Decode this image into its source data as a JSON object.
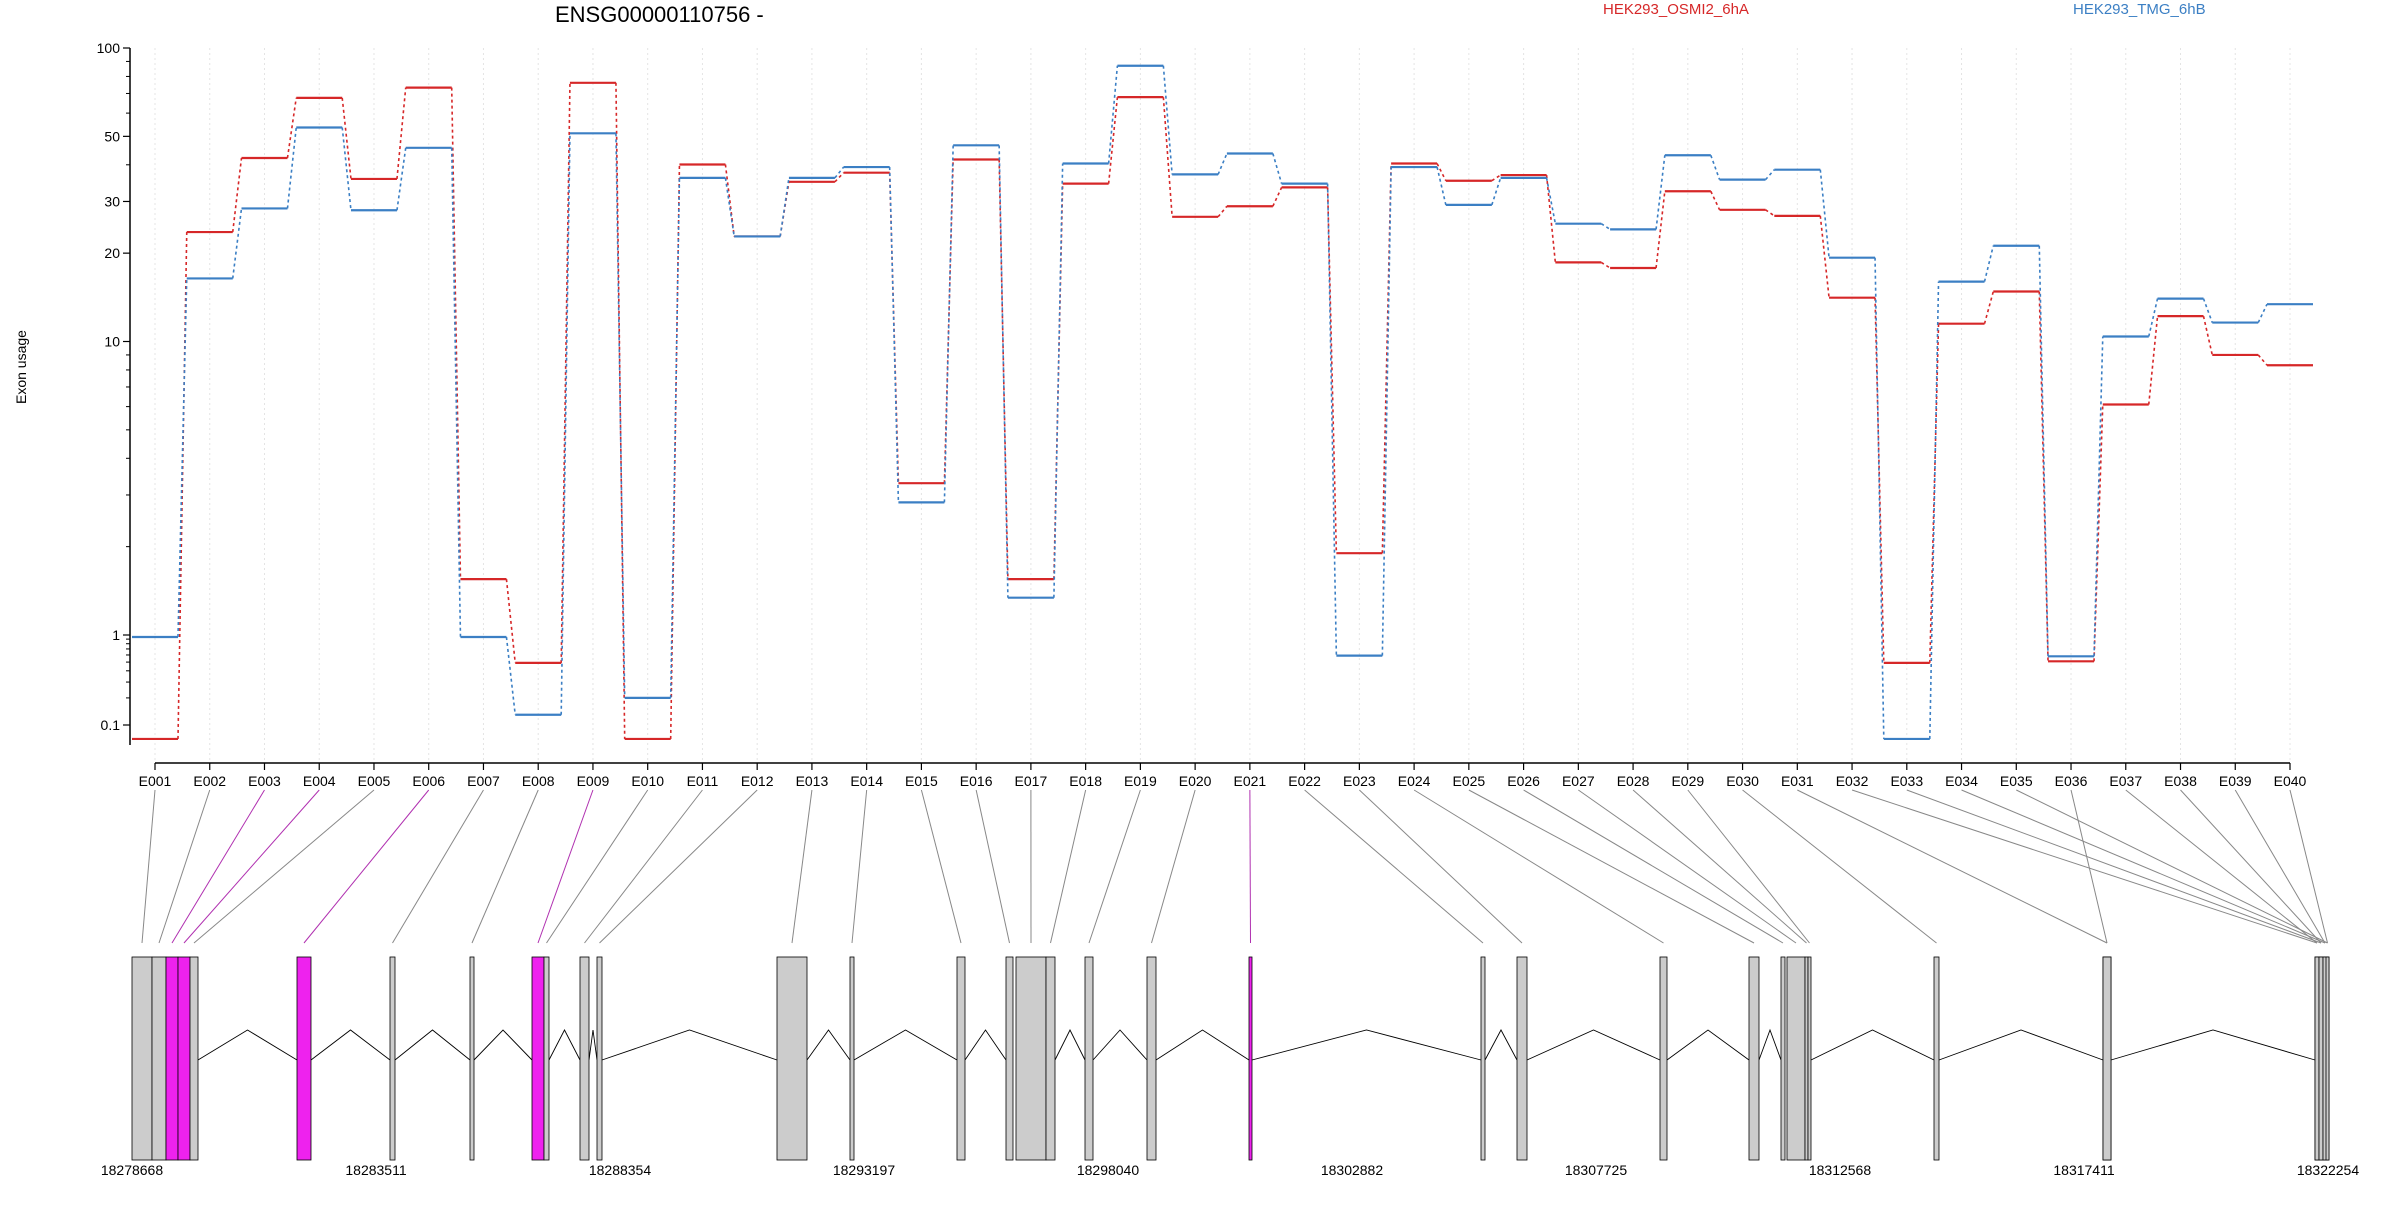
{
  "chart_data": {
    "type": "line",
    "title": "ENSG00000110756 -",
    "ylabel": "Exon usage",
    "yscale": "log",
    "ylim": [
      0.07,
      100
    ],
    "yticks": [
      "100",
      "50",
      "30",
      "20",
      "10",
      "1",
      "0.1"
    ],
    "ytick_values": [
      100,
      50,
      30,
      20,
      10,
      1,
      0.1
    ],
    "grid": "vertical dotted lines at each exon",
    "legend_position": "top",
    "categories": [
      "E001",
      "E002",
      "E003",
      "E004",
      "E005",
      "E006",
      "E007",
      "E008",
      "E009",
      "E010",
      "E011",
      "E012",
      "E013",
      "E014",
      "E015",
      "E016",
      "E017",
      "E018",
      "E019",
      "E020",
      "E021",
      "E022",
      "E023",
      "E024",
      "E025",
      "E026",
      "E027",
      "E028",
      "E029",
      "E030",
      "E031",
      "E032",
      "E033",
      "E034",
      "E035",
      "E036",
      "E037",
      "E038",
      "E039",
      "E040"
    ],
    "series": [
      {
        "name": "HEK293_OSMI2_6hA",
        "color": "#d62728",
        "values": [
          0.07,
          23.6,
          42.2,
          67.6,
          35.8,
          73.3,
          1.55,
          0.49,
          76.1,
          0.07,
          40.1,
          22.8,
          35.0,
          37.6,
          3.29,
          41.7,
          1.55,
          34.5,
          68.0,
          26.6,
          28.9,
          33.5,
          1.9,
          40.4,
          35.3,
          36.9,
          18.6,
          17.8,
          32.5,
          28.1,
          26.8,
          14.1,
          0.49,
          11.5,
          14.8,
          0.51,
          6.1,
          12.2,
          9.0,
          8.3
        ]
      },
      {
        "name": "HEK293_TMG_6hB",
        "color": "#3b7fc4",
        "values": [
          0.95,
          16.4,
          28.4,
          53.6,
          28.0,
          45.7,
          0.95,
          0.13,
          51.2,
          0.2,
          36.1,
          22.8,
          36.1,
          39.3,
          2.83,
          46.6,
          1.34,
          40.4,
          87.0,
          37.1,
          43.7,
          34.5,
          0.59,
          39.3,
          29.2,
          36.1,
          25.2,
          24.1,
          43.1,
          35.6,
          38.5,
          19.3,
          0.07,
          16.0,
          21.2,
          0.58,
          10.4,
          14.0,
          11.6,
          13.4
        ]
      }
    ],
    "x_coordinate_ticks": [
      "18278668",
      "18283511",
      "18288354",
      "18293197",
      "18298040",
      "18302882",
      "18307725",
      "18312568",
      "18317411",
      "18322254"
    ]
  },
  "gene_model": {
    "color_normal": "#cccccc",
    "color_highlight": "#ee22ee",
    "highlighted_exons": [
      "E003",
      "E004",
      "E006",
      "E009",
      "E021"
    ]
  }
}
